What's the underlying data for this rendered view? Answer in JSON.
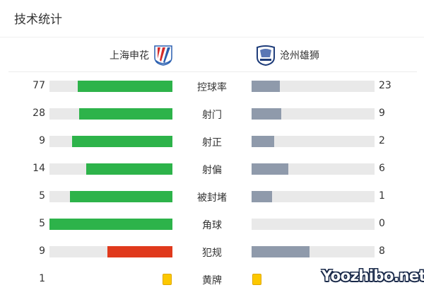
{
  "title": "技术统计",
  "home_team": {
    "name": "上海申花",
    "logo": "shanghai-shenhua-crest"
  },
  "away_team": {
    "name": "沧州雄狮",
    "logo": "cangzhou-lions-crest"
  },
  "colors": {
    "home": "#2db34a",
    "home_foul": "#e0391c",
    "away": "#8f9aab",
    "track": "#e9e9e9",
    "card": "#fcc800"
  },
  "stats": [
    {
      "label": "控球率",
      "home": "77",
      "away": "23",
      "home_color": "#2db34a"
    },
    {
      "label": "射门",
      "home": "28",
      "away": "9",
      "home_color": "#2db34a"
    },
    {
      "label": "射正",
      "home": "9",
      "away": "2",
      "home_color": "#2db34a"
    },
    {
      "label": "射偏",
      "home": "14",
      "away": "6",
      "home_color": "#2db34a"
    },
    {
      "label": "被封堵",
      "home": "5",
      "away": "1",
      "home_color": "#2db34a"
    },
    {
      "label": "角球",
      "home": "5",
      "away": "0",
      "home_color": "#2db34a"
    },
    {
      "label": "犯规",
      "home": "9",
      "away": "8",
      "home_color": "#e0391c"
    }
  ],
  "yellow_cards": {
    "label": "黄牌",
    "home": "1",
    "away": ""
  },
  "watermark": "Yoozhibo.net"
}
